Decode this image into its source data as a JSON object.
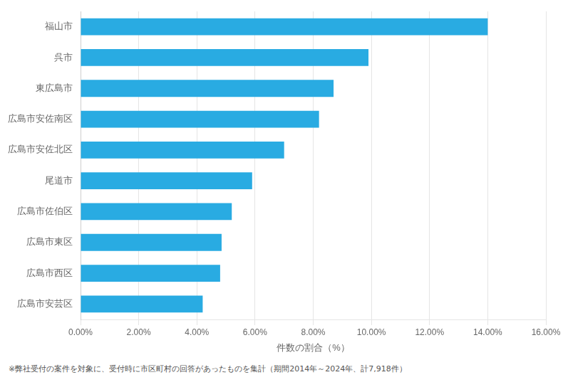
{
  "chart_data": {
    "type": "bar",
    "orientation": "horizontal",
    "categories": [
      "広島市安芸区",
      "広島市西区",
      "広島市東区",
      "広島市佐伯区",
      "尾道市",
      "広島市安佐北区",
      "広島市安佐南区",
      "東広島市",
      "呉市",
      "福山市"
    ],
    "values": [
      4.2,
      4.8,
      4.85,
      5.2,
      5.9,
      7.0,
      8.2,
      8.7,
      9.9,
      14.0
    ],
    "color": "#29ABE2",
    "xlabel": "件数の割合（%）",
    "xlim": [
      0,
      16.0
    ],
    "xticks": [
      {
        "value": 0,
        "label": "0.00%"
      },
      {
        "value": 2.0,
        "label": "2.00%"
      },
      {
        "value": 4.0,
        "label": "4.00%"
      },
      {
        "value": 6.0,
        "label": "6.00%"
      },
      {
        "value": 8.0,
        "label": "8.00%"
      },
      {
        "value": 10.0,
        "label": "10.00%"
      },
      {
        "value": 12.0,
        "label": "12.00%"
      },
      {
        "value": 14.0,
        "label": "14.00%"
      },
      {
        "value": 16.0,
        "label": "16.00%"
      }
    ],
    "grid": true,
    "footnote": "※弊社受付の案件を対象に、受付時に市区町村の回答があったものを集計（期間2014年～2024年、計7,918件）"
  }
}
